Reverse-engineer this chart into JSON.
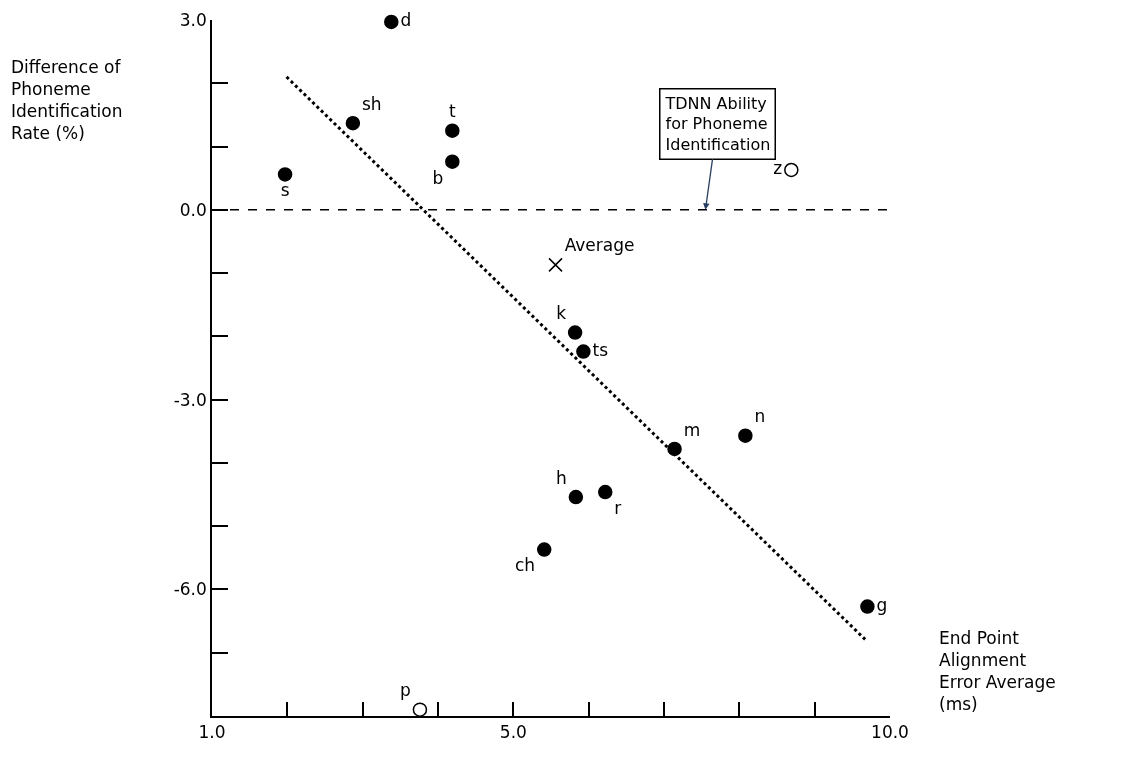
{
  "chart_data": {
    "type": "scatter",
    "xlabel": "End Point\nAlignment\nError Average\n(ms)",
    "ylabel": "Difference of\nPhoneme\nIdentification\nRate (%)",
    "xlim": [
      1,
      10
    ],
    "xticks": [
      {
        "value": 1,
        "label": "1.0"
      },
      {
        "value": 2,
        "label": null
      },
      {
        "value": 3,
        "label": null
      },
      {
        "value": 4,
        "label": null
      },
      {
        "value": 5,
        "label": "5.0"
      },
      {
        "value": 6,
        "label": null
      },
      {
        "value": 7,
        "label": null
      },
      {
        "value": 8,
        "label": null
      },
      {
        "value": 9,
        "label": null
      },
      {
        "value": 10,
        "label": "10.0"
      }
    ],
    "ylim": [
      -8,
      3
    ],
    "yticks": [
      {
        "value": -8,
        "label": null
      },
      {
        "value": -7,
        "label": null
      },
      {
        "value": -6,
        "label": "-6.0"
      },
      {
        "value": -5,
        "label": null
      },
      {
        "value": -4,
        "label": null
      },
      {
        "value": -3,
        "label": "-3.0"
      },
      {
        "value": -2,
        "label": null
      },
      {
        "value": -1,
        "label": null
      },
      {
        "value": 0,
        "label": "0.0"
      },
      {
        "value": 1,
        "label": null
      },
      {
        "value": 2,
        "label": null
      },
      {
        "value": 3,
        "label": "3.0"
      }
    ],
    "grid": false,
    "series": [
      {
        "marker": "circle",
        "color": "#000000",
        "x": [
          3.38,
          2.87,
          4.19,
          4.19,
          1.97,
          5.82,
          5.93,
          7.14,
          8.08,
          5.83,
          6.22,
          5.41,
          9.7
        ],
        "values": [
          2.97,
          1.37,
          1.25,
          0.76,
          0.56,
          -1.94,
          -2.24,
          -3.78,
          -3.57,
          -4.54,
          -4.46,
          -5.37,
          -6.27
        ],
        "value_labels": [
          "d",
          "sh",
          "t",
          "b",
          "s",
          "k",
          "ts",
          "m",
          "n",
          "h",
          "r",
          "ch",
          "g"
        ]
      },
      {
        "marker": "circle-open",
        "color": "#000000",
        "x": [
          8.69,
          3.76
        ],
        "values": [
          0.63,
          -7.9
        ],
        "value_labels": [
          "z",
          "p"
        ]
      },
      {
        "marker": "cross",
        "color": "#000000",
        "x": [
          5.56
        ],
        "values": [
          -0.87
        ],
        "value_labels": [
          "Average"
        ]
      },
      {
        "type": "line",
        "line_style": "dotted",
        "color": "#000000",
        "x": [
          1.99,
          9.67
        ],
        "values": [
          2.1,
          -6.79
        ]
      }
    ],
    "ref_lines": [
      {
        "axis": "y",
        "value": 0,
        "line_style": "dashed",
        "color": "#000000"
      }
    ],
    "annotations": [
      {
        "text": "TDNN Ability\nfor Phoneme\nIdentification",
        "x": 7.55,
        "y": 0
      }
    ]
  }
}
